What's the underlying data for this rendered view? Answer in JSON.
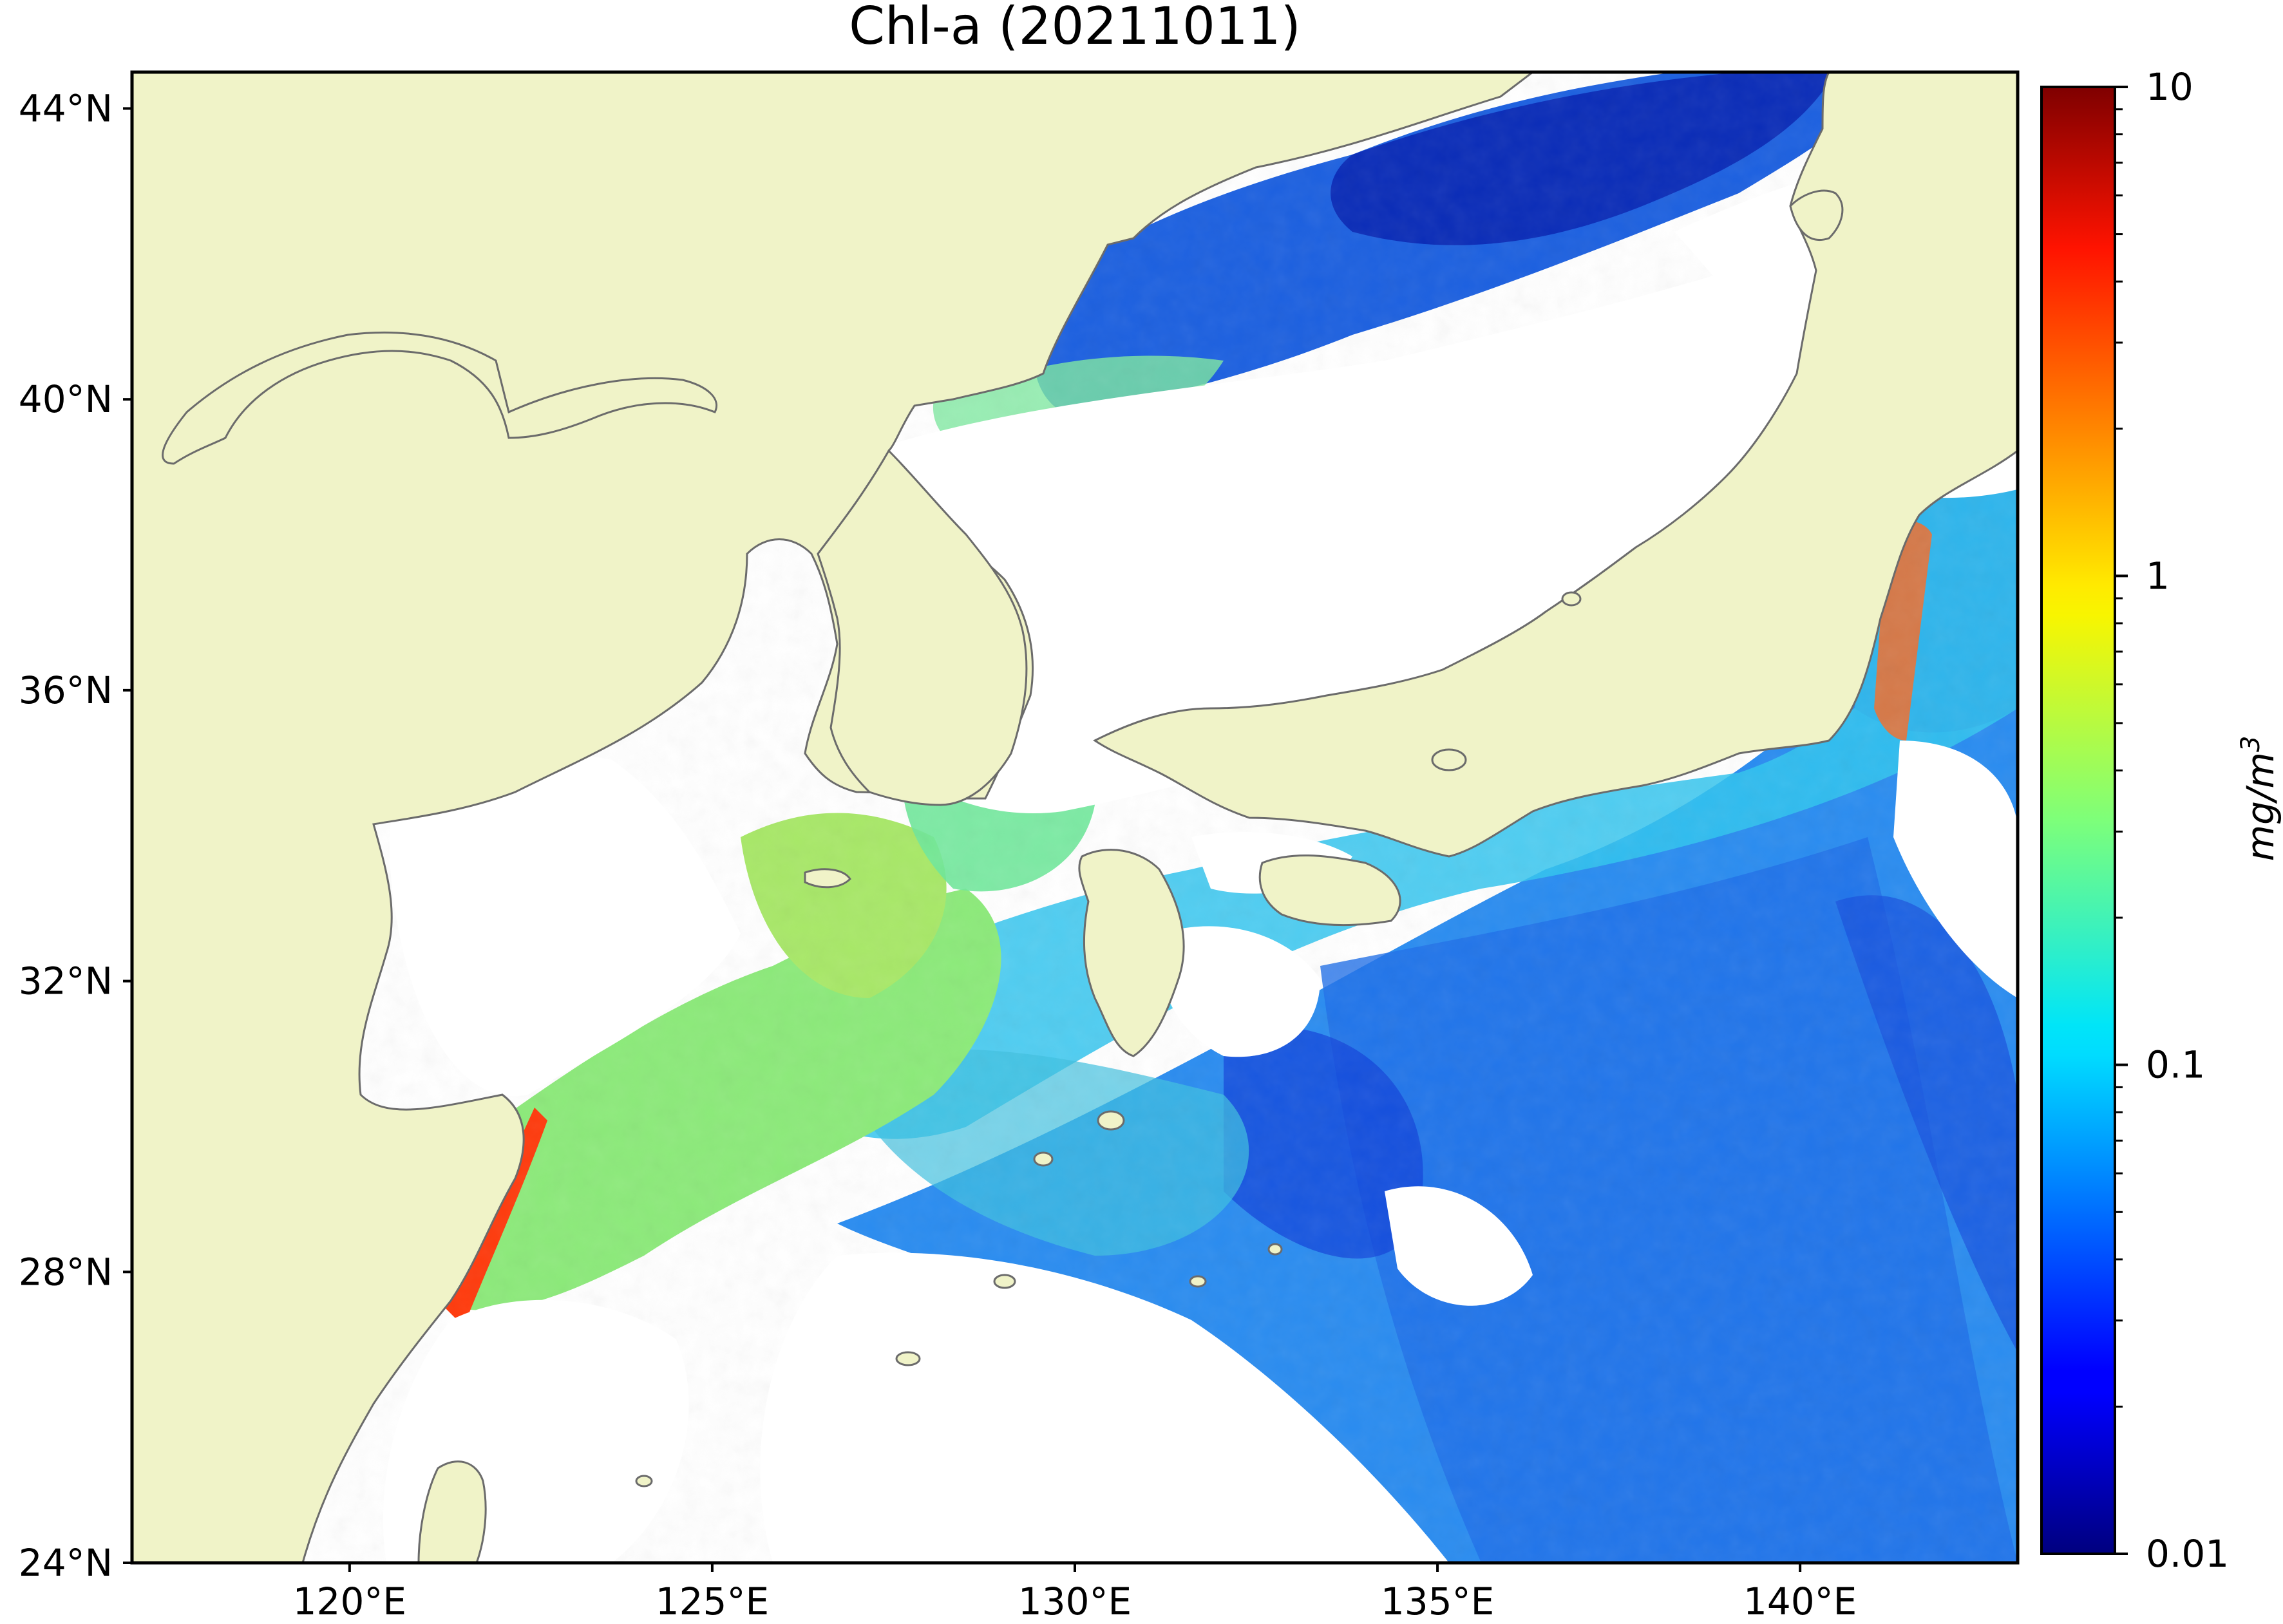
{
  "title": "Chl-a (20211011)",
  "colorbar": {
    "unit_base": "mg/m",
    "unit_exponent": "3",
    "ticks": [
      {
        "value": 10,
        "label": "10"
      },
      {
        "value": 1,
        "label": "1"
      },
      {
        "value": 0.1,
        "label": "0.1"
      },
      {
        "value": 0.01,
        "label": "0.01"
      }
    ],
    "range": [
      0.01,
      10
    ],
    "scale": "log",
    "colormap": "jet"
  },
  "map": {
    "extent_lon": [
      117,
      143
    ],
    "extent_lat": [
      24,
      44.5
    ],
    "lat_ticks": [
      {
        "value": 44,
        "label": "44°N"
      },
      {
        "value": 40,
        "label": "40°N"
      },
      {
        "value": 36,
        "label": "36°N"
      },
      {
        "value": 32,
        "label": "32°N"
      },
      {
        "value": 28,
        "label": "28°N"
      },
      {
        "value": 24,
        "label": "24°N"
      }
    ],
    "lon_ticks": [
      {
        "value": 120,
        "label": "120°E"
      },
      {
        "value": 125,
        "label": "125°E"
      },
      {
        "value": 130,
        "label": "130°E"
      },
      {
        "value": 135,
        "label": "135°E"
      },
      {
        "value": 140,
        "label": "140°E"
      }
    ],
    "colors": {
      "land": "#f0f3c8",
      "no_data": "#ffffff",
      "coastline": "#6b6b6b",
      "frame": "#000000"
    }
  }
}
